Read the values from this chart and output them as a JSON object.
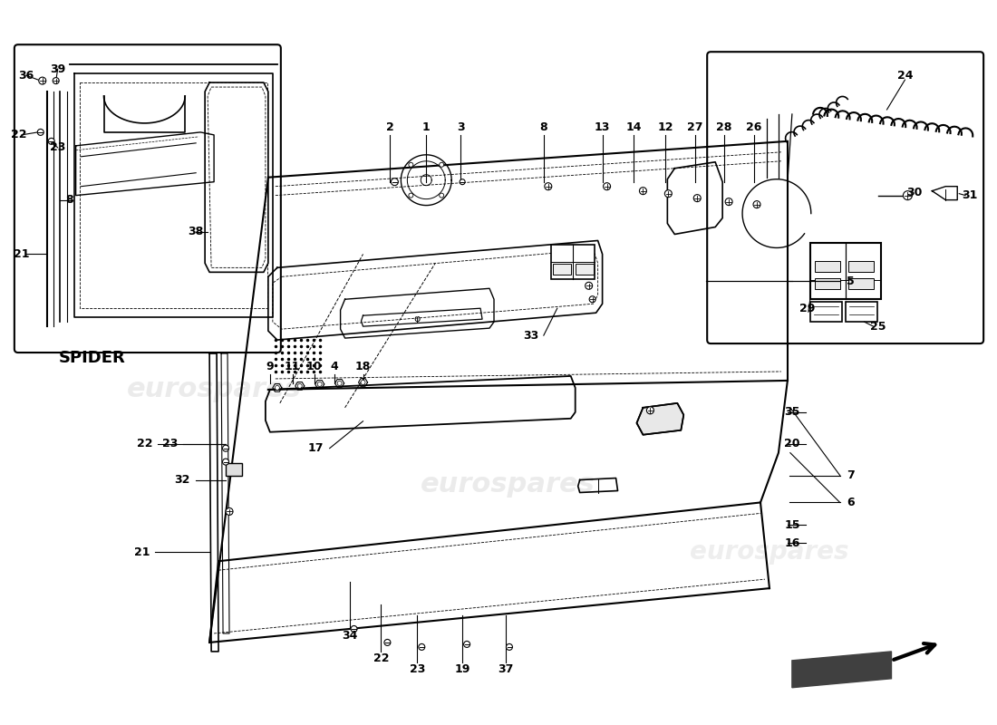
{
  "bg_color": "#ffffff",
  "lc": "#000000",
  "wc": "#c8c8c8",
  "spider_label": "SPIDER",
  "figsize": [
    11.0,
    8.0
  ],
  "dpi": 100,
  "xlim": [
    0,
    1100
  ],
  "ylim": [
    0,
    800
  ]
}
